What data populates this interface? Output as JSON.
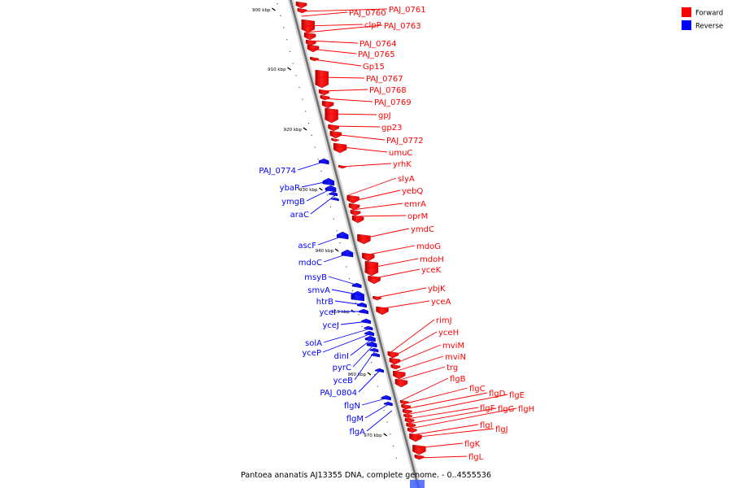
{
  "caption": "Pantoea ananatis AJ13355 DNA, complete genome. - 0..4555536",
  "legend": [
    {
      "label": "Forward",
      "color": "#ff0000"
    },
    {
      "label": "Reverse",
      "color": "#0000ff"
    }
  ],
  "colors": {
    "forward": "#ff0000",
    "reverse": "#0000ff",
    "backbone": "#808080"
  },
  "ticks": [
    "900 kbp",
    "910 kbp",
    "920 kbp",
    "930 kbp",
    "940 kbp",
    "950 kbp",
    "960 kbp",
    "970 kbp"
  ],
  "forward_genes": [
    "PAJ_0760",
    "PAJ_0761",
    "clpP",
    "PAJ_0763",
    "PAJ_0764",
    "PAJ_0765",
    "Gp15",
    "PAJ_0767",
    "PAJ_0768",
    "PAJ_0769",
    "gpJ",
    "gp23",
    "PAJ_0772",
    "umuC",
    "yrhK",
    "slyA",
    "yebQ",
    "emrA",
    "oprM",
    "ymdC",
    "mdoG",
    "mdoH",
    "yceK",
    "ybjK",
    "yceA",
    "rimJ",
    "yceH",
    "mviM",
    "mviN",
    "trg",
    "flgB",
    "flgC",
    "flgD",
    "flgE",
    "flgF",
    "flgG",
    "flgH",
    "flgI",
    "flgJ",
    "flgK",
    "flgL"
  ],
  "reverse_genes": [
    "PAJ_0774",
    "ybaR",
    "ymgB",
    "araC",
    "ascF",
    "mdoC",
    "msyB",
    "smvA",
    "htrB",
    "yceI",
    "yceJ",
    "solA",
    "yceP",
    "dinI",
    "pyrC",
    "yceB",
    "PAJ_0804",
    "flgN",
    "flgM",
    "flgA"
  ]
}
